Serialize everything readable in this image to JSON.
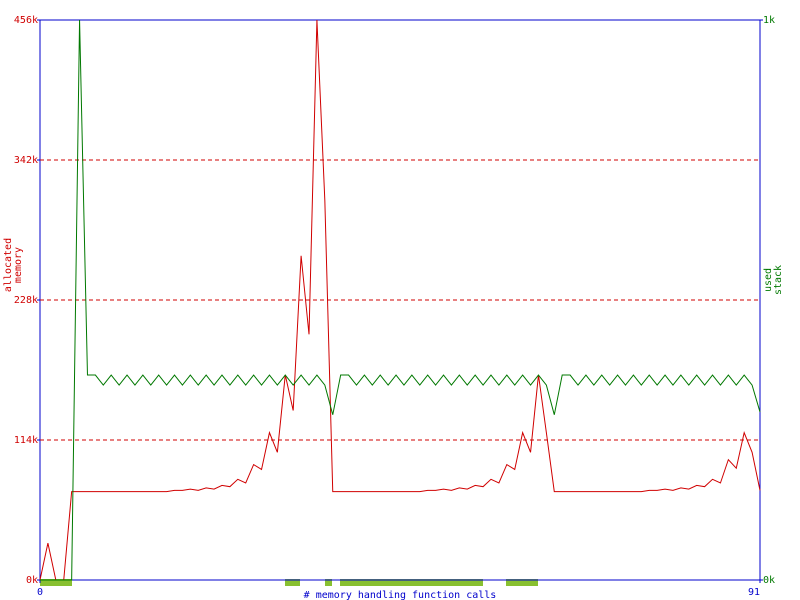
{
  "chart_data": {
    "type": "line",
    "xlabel": "# memory handling function calls",
    "ylabel_lines": [
      "allocated",
      "memory"
    ],
    "y2label_lines": [
      "used",
      "stack"
    ],
    "x": [
      0,
      1,
      2,
      3,
      4,
      5,
      6,
      7,
      8,
      9,
      10,
      11,
      12,
      13,
      14,
      15,
      16,
      17,
      18,
      19,
      20,
      21,
      22,
      23,
      24,
      25,
      26,
      27,
      28,
      29,
      30,
      31,
      32,
      33,
      34,
      35,
      36,
      37,
      38,
      39,
      40,
      41,
      42,
      43,
      44,
      45,
      46,
      47,
      48,
      49,
      50,
      51,
      52,
      53,
      54,
      55,
      56,
      57,
      58,
      59,
      60,
      61,
      62,
      63,
      64,
      65,
      66,
      67,
      68,
      69,
      70,
      71,
      72,
      73,
      74,
      75,
      76,
      77,
      78,
      79,
      80,
      81,
      82,
      83,
      84,
      85,
      86,
      87,
      88,
      89,
      90,
      91
    ],
    "xlim": [
      0,
      91
    ],
    "xticks": [
      0,
      91
    ],
    "ylim": [
      0,
      456
    ],
    "yticks": [
      {
        "value": 0,
        "label": "0k"
      },
      {
        "value": 114,
        "label": "114k"
      },
      {
        "value": 228,
        "label": "228k"
      },
      {
        "value": 342,
        "label": "342k"
      },
      {
        "value": 456,
        "label": "456k"
      }
    ],
    "y2lim": [
      0,
      1
    ],
    "y2ticks": [
      {
        "value": 0,
        "label": "0k"
      },
      {
        "value": 1,
        "label": "1k"
      }
    ],
    "grid": true,
    "series": [
      {
        "name": "allocated memory",
        "color": "#d00000",
        "values": [
          0,
          30,
          0,
          0,
          72,
          72,
          72,
          72,
          72,
          72,
          72,
          72,
          72,
          72,
          72,
          72,
          72,
          73,
          73,
          74,
          73,
          75,
          74,
          77,
          76,
          82,
          79,
          94,
          90,
          120,
          104,
          167,
          138,
          264,
          200,
          456,
          309,
          72,
          72,
          72,
          72,
          72,
          72,
          72,
          72,
          72,
          72,
          72,
          72,
          73,
          73,
          74,
          73,
          75,
          74,
          77,
          76,
          82,
          79,
          94,
          90,
          120,
          104,
          167,
          120,
          72,
          72,
          72,
          72,
          72,
          72,
          72,
          72,
          72,
          72,
          72,
          72,
          73,
          73,
          74,
          73,
          75,
          74,
          77,
          76,
          82,
          79,
          98,
          91,
          120,
          104,
          73
        ]
      },
      {
        "name": "used stack",
        "color": "#007800",
        "axis": "y2",
        "values": [
          0,
          0,
          0,
          0,
          0,
          1.0,
          0.366,
          0.366,
          0.348,
          0.366,
          0.348,
          0.366,
          0.348,
          0.366,
          0.348,
          0.366,
          0.348,
          0.366,
          0.348,
          0.366,
          0.348,
          0.366,
          0.348,
          0.366,
          0.348,
          0.366,
          0.348,
          0.366,
          0.348,
          0.366,
          0.348,
          0.366,
          0.348,
          0.366,
          0.348,
          0.366,
          0.348,
          0.295,
          0.366,
          0.366,
          0.348,
          0.366,
          0.348,
          0.366,
          0.348,
          0.366,
          0.348,
          0.366,
          0.348,
          0.366,
          0.348,
          0.366,
          0.348,
          0.366,
          0.348,
          0.366,
          0.348,
          0.366,
          0.348,
          0.366,
          0.348,
          0.366,
          0.348,
          0.366,
          0.348,
          0.295,
          0.366,
          0.366,
          0.348,
          0.366,
          0.348,
          0.366,
          0.348,
          0.366,
          0.348,
          0.366,
          0.348,
          0.366,
          0.348,
          0.366,
          0.348,
          0.366,
          0.348,
          0.366,
          0.348,
          0.366,
          0.348,
          0.366,
          0.348,
          0.366,
          0.348,
          0.3
        ]
      }
    ]
  }
}
